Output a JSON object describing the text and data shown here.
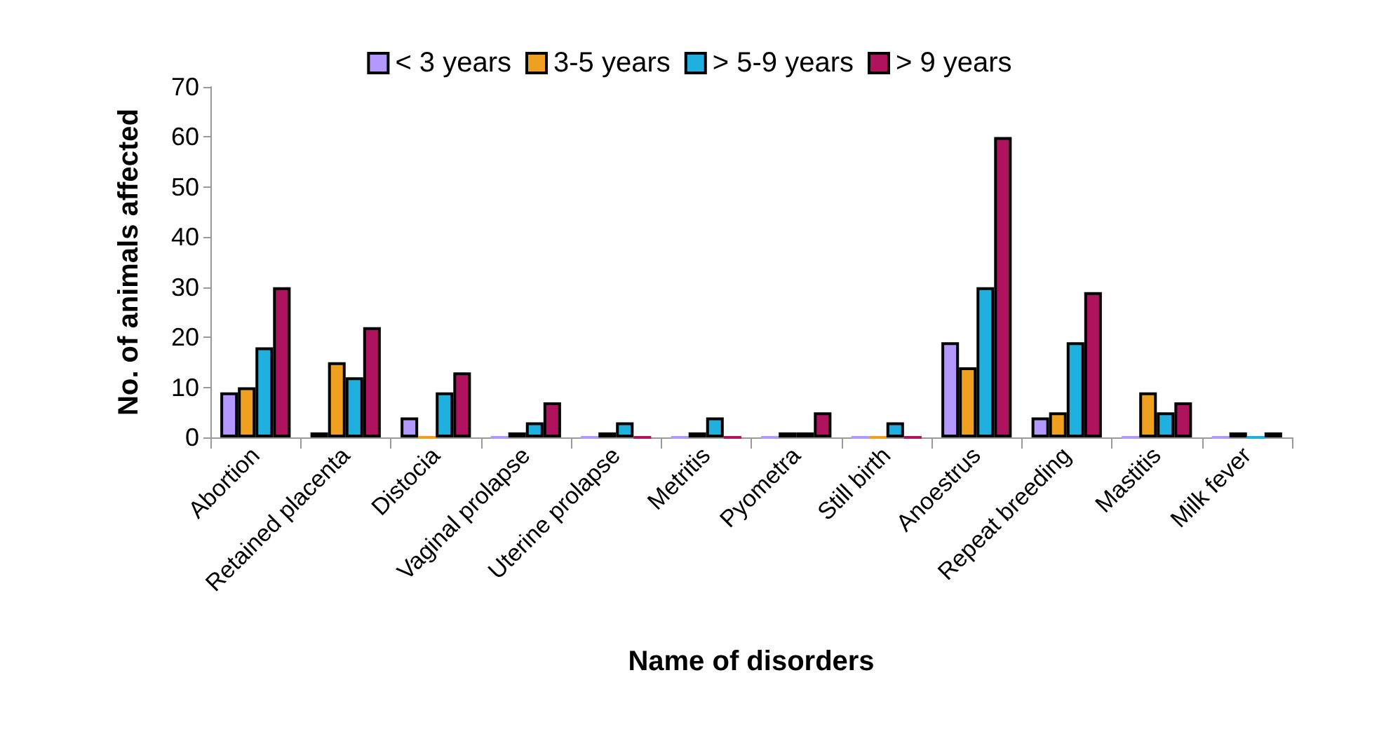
{
  "chart_data": {
    "type": "bar",
    "xlabel": "Name of disorders",
    "ylabel": "No. of animals affected",
    "categories": [
      "Abortion",
      "Retained placenta",
      "Distocia",
      "Vaginal prolapse",
      "Uterine prolapse",
      "Metritis",
      "Pyometra",
      "Still birth",
      "Anoestrus",
      "Repeat breeding",
      "Mastitis",
      "Milk fever"
    ],
    "series": [
      {
        "name": "< 3 years",
        "color": "#b399ff",
        "values": [
          9,
          1,
          4,
          0,
          0,
          0,
          0,
          0,
          19,
          4,
          0,
          0
        ]
      },
      {
        "name": "3-5 years",
        "color": "#f0a020",
        "values": [
          10,
          15,
          0,
          1,
          1,
          1,
          1,
          0,
          14,
          5,
          9,
          1
        ]
      },
      {
        "name": "> 5-9 years",
        "color": "#1fb0e0",
        "values": [
          18,
          12,
          9,
          3,
          3,
          4,
          1,
          3,
          30,
          19,
          5,
          0
        ]
      },
      {
        "name": "> 9 years",
        "color": "#b0135e",
        "values": [
          30,
          22,
          13,
          7,
          0,
          0,
          5,
          0,
          60,
          29,
          7,
          1
        ]
      }
    ],
    "ylim": [
      0,
      70
    ],
    "yticks": [
      0,
      10,
      20,
      30,
      40,
      50,
      60,
      70
    ],
    "grid": false,
    "legend": "top"
  }
}
